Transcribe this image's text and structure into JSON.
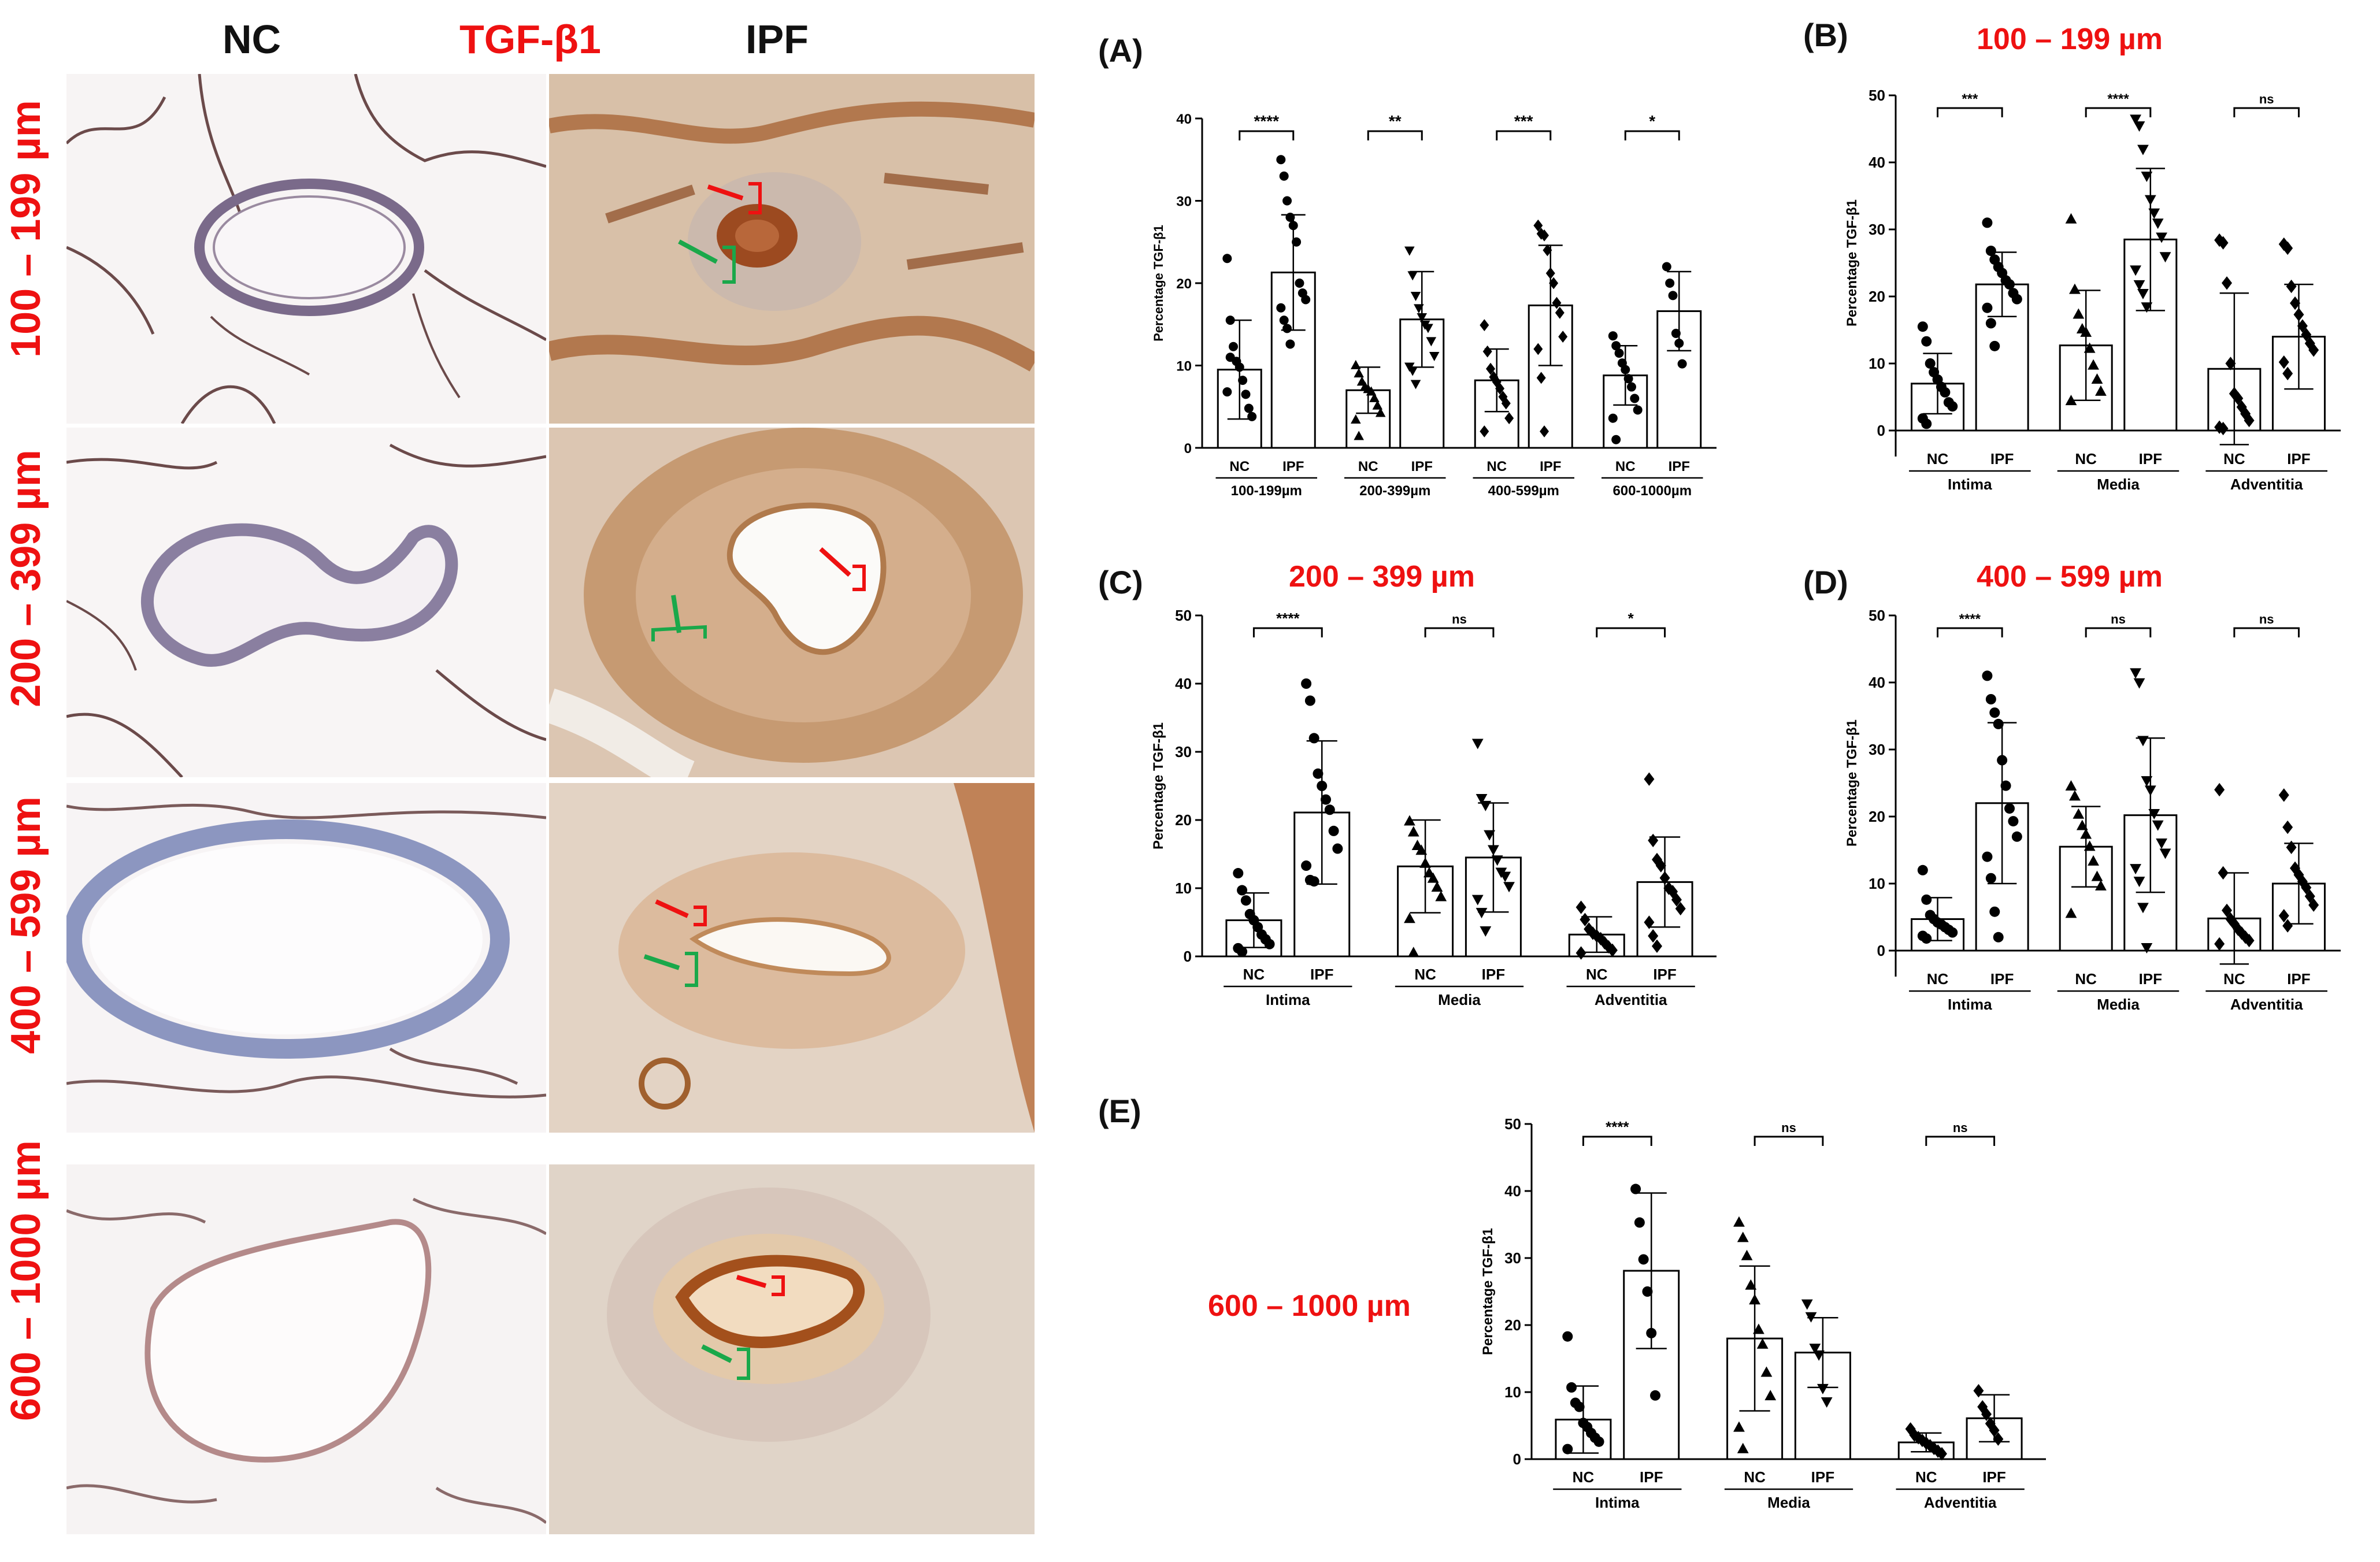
{
  "figure": {
    "headers": {
      "nc": "NC",
      "stain": "TGF-β1",
      "ipf": "IPF"
    },
    "row_labels": [
      "100 – 199 µm",
      "200 – 399 µm",
      "400 – 599 µm",
      "600 – 1000 µm"
    ],
    "panels": {
      "A": {
        "letter": "(A)",
        "size": ""
      },
      "B": {
        "letter": "(B)",
        "size": "100 – 199 µm"
      },
      "C": {
        "letter": "(C)",
        "size": "200 – 399 µm"
      },
      "D": {
        "letter": "(D)",
        "size": "400 – 599 µm"
      },
      "E": {
        "letter": "(E)",
        "size": "600 – 1000 µm"
      }
    },
    "colors": {
      "label_red": "#ee1111",
      "arrow_red": "#ee1111",
      "arrow_green": "#1aa84a",
      "stain_brown": "#a8622a",
      "tissue_blue": "#aab4cc"
    }
  },
  "chart_data": [
    {
      "id": "A",
      "type": "bar",
      "ylabel": "Percentage TGF-β1",
      "ylim": [
        0,
        40
      ],
      "yticks": [
        0,
        10,
        20,
        30,
        40
      ],
      "groups": [
        "100-199µm",
        "200-399µm",
        "400-599µm",
        "600-1000µm"
      ],
      "categories": [
        "NC",
        "IPF",
        "NC",
        "IPF",
        "NC",
        "IPF",
        "NC",
        "IPF"
      ],
      "values": [
        9.5,
        21.3,
        7.0,
        15.6,
        8.2,
        17.3,
        8.8,
        16.6
      ],
      "sd": [
        6.0,
        7.0,
        2.8,
        5.8,
        3.8,
        7.3,
        3.6,
        4.8
      ],
      "points": [
        [
          23,
          15.5,
          12.3,
          10.5,
          9.8,
          8.2,
          6.5,
          4.8,
          3.8,
          6.8,
          11
        ],
        [
          35,
          33,
          30,
          28,
          27,
          25,
          20,
          18.8,
          18,
          17,
          15.5,
          14.5,
          12.6
        ],
        [
          10,
          9,
          8,
          7.4,
          7.1,
          6.8,
          6,
          5.1,
          4.2,
          3.4,
          1.4
        ],
        [
          24,
          21,
          18.5,
          17,
          15.9,
          15,
          14.6,
          13,
          11.2,
          9.9,
          9.4,
          7.8
        ],
        [
          14.9,
          11.7,
          9.6,
          8.6,
          8,
          7.2,
          6.2,
          5.4,
          3.6,
          2
        ],
        [
          27,
          26,
          25.8,
          24,
          21.2,
          20,
          17.6,
          16.4,
          13.5,
          12,
          8.5,
          2
        ],
        [
          13.6,
          12.4,
          11.5,
          10.3,
          9.5,
          8.4,
          7.4,
          6,
          4.6,
          3.6,
          1
        ],
        [
          22,
          20,
          18.5,
          13.9,
          12.7,
          10.2
        ]
      ],
      "markers": [
        "circle",
        "circle",
        "triangle",
        "triangle-down",
        "diamond",
        "diamond",
        "circle",
        "circle"
      ],
      "significance": [
        "****",
        "**",
        "***",
        "*"
      ]
    },
    {
      "id": "B",
      "type": "bar",
      "ylabel": "Percentage TGF-β1",
      "ylim": [
        0,
        50
      ],
      "yticks": [
        0,
        10,
        20,
        30,
        40,
        50
      ],
      "groups": [
        "Intima",
        "Media",
        "Adventitia"
      ],
      "categories": [
        "NC",
        "IPF",
        "NC",
        "IPF",
        "NC",
        "IPF"
      ],
      "values": [
        7.0,
        21.8,
        12.7,
        28.5,
        9.2,
        14.0
      ],
      "sd": [
        4.5,
        4.8,
        8.2,
        10.6,
        11.3,
        7.8
      ],
      "points": [
        [
          15.5,
          13.3,
          10,
          8.7,
          7.6,
          6.5,
          5.7,
          4.2,
          3.6,
          1.8,
          1
        ],
        [
          31,
          26.8,
          25.5,
          24.4,
          23.5,
          22.4,
          21.8,
          20.5,
          19.6,
          18.3,
          16,
          12.6
        ],
        [
          31.5,
          21,
          17.3,
          15.1,
          14.6,
          12.2,
          9.7,
          7.6,
          5.8,
          4.4
        ],
        [
          46.5,
          45.5,
          42,
          38,
          34.5,
          32.5,
          31,
          28.9,
          26,
          24,
          21.8,
          20.5,
          18.5
        ],
        [
          28.4,
          28,
          22,
          10,
          5.5,
          4.8,
          3.5,
          2.5,
          1.5,
          0.5,
          0.3
        ],
        [
          27.8,
          27.2,
          21.5,
          19,
          17.3,
          15.6,
          14.3,
          13,
          12,
          10.2,
          8.5
        ]
      ],
      "markers": [
        "circle",
        "circle",
        "triangle",
        "triangle-down",
        "diamond",
        "diamond"
      ],
      "significance": [
        "***",
        "****",
        "ns"
      ]
    },
    {
      "id": "C",
      "type": "bar",
      "ylabel": "Percentage TGF-β1",
      "ylim": [
        0,
        50
      ],
      "yticks": [
        0,
        10,
        20,
        30,
        40,
        50
      ],
      "groups": [
        "Intima",
        "Media",
        "Adventitia"
      ],
      "categories": [
        "NC",
        "IPF",
        "NC",
        "IPF",
        "NC",
        "IPF"
      ],
      "values": [
        5.3,
        21.1,
        13.2,
        14.5,
        3.2,
        10.9
      ],
      "sd": [
        4.0,
        10.5,
        6.8,
        8.0,
        2.6,
        6.6
      ],
      "points": [
        [
          12.2,
          9.7,
          8.2,
          6.2,
          5.3,
          4.3,
          3.2,
          2.5,
          1.8,
          1.2,
          0.7
        ],
        [
          40,
          37.5,
          32,
          26.8,
          25,
          23,
          21.5,
          18.4,
          15.8,
          13.3,
          11.2,
          11
        ],
        [
          19.8,
          18.2,
          16.2,
          15.5,
          13.6,
          12.2,
          11.4,
          10.1,
          8.7,
          5.5,
          0.5
        ],
        [
          31.3,
          23.2,
          22.2,
          17.9,
          15.7,
          14.2,
          12.4,
          11.8,
          10.3,
          8.4,
          6.5,
          3.8
        ],
        [
          7.2,
          5.4,
          4,
          3.4,
          3,
          2.6,
          2,
          1.4,
          0.9,
          0.5
        ],
        [
          26,
          17,
          14.2,
          13.3,
          11.5,
          10,
          9.5,
          8.3,
          7,
          5,
          3,
          1.5
        ]
      ],
      "markers": [
        "circle",
        "circle",
        "triangle",
        "triangle-down",
        "diamond",
        "diamond"
      ],
      "significance": [
        "****",
        "ns",
        "*"
      ]
    },
    {
      "id": "D",
      "type": "bar",
      "ylabel": "Percentage TGF-β1",
      "ylim": [
        0,
        50
      ],
      "yticks": [
        0,
        10,
        20,
        30,
        40,
        50
      ],
      "groups": [
        "Intima",
        "Media",
        "Adventitia"
      ],
      "categories": [
        "NC",
        "IPF",
        "NC",
        "IPF",
        "NC",
        "IPF"
      ],
      "values": [
        4.7,
        22.0,
        15.5,
        20.2,
        4.8,
        10.0
      ],
      "sd": [
        3.2,
        12.0,
        6.0,
        11.5,
        6.8,
        6.0
      ],
      "points": [
        [
          12,
          7.6,
          5.3,
          4.7,
          4.2,
          3.9,
          3.5,
          3.1,
          2.7,
          2.2,
          1.8
        ],
        [
          41,
          37.5,
          35.5,
          33.8,
          28.4,
          24.6,
          21.2,
          19.3,
          17,
          14,
          10.8,
          5.8,
          2
        ],
        [
          24.5,
          23,
          20.3,
          18.6,
          17.3,
          15.5,
          13.3,
          11,
          9.6,
          5.5
        ],
        [
          41.5,
          40,
          31.4,
          25.4,
          24,
          20.5,
          18.8,
          16.1,
          14.6,
          12.3,
          10.4,
          6.5,
          0.5
        ],
        [
          24,
          11.6,
          6,
          4.7,
          4,
          3.2,
          2.6,
          2,
          1.5,
          1
        ],
        [
          23.2,
          18.4,
          15.4,
          12.3,
          11.3,
          10.3,
          9.4,
          8.1,
          6.8,
          5.2,
          3.7
        ]
      ],
      "markers": [
        "circle",
        "circle",
        "triangle",
        "triangle-down",
        "diamond",
        "diamond"
      ],
      "significance": [
        "****",
        "ns",
        "ns"
      ]
    },
    {
      "id": "E",
      "type": "bar",
      "ylabel": "Percentage TGF-β1",
      "ylim": [
        0,
        50
      ],
      "yticks": [
        0,
        10,
        20,
        30,
        40,
        50
      ],
      "groups": [
        "Intima",
        "Media",
        "Adventitia"
      ],
      "categories": [
        "NC",
        "IPF",
        "NC",
        "IPF",
        "NC",
        "IPF"
      ],
      "values": [
        5.9,
        28.1,
        18.0,
        15.9,
        2.5,
        6.1
      ],
      "sd": [
        5.0,
        11.6,
        10.8,
        5.2,
        1.4,
        3.5
      ],
      "points": [
        [
          18.3,
          10.7,
          8.4,
          7.8,
          5.4,
          4.8,
          3.9,
          3.2,
          2.6,
          1.5
        ],
        [
          40.3,
          35.3,
          29.8,
          25,
          18.8,
          9.5
        ],
        [
          35.3,
          33,
          30.3,
          25.9,
          23.7,
          19.3,
          17.1,
          12.9,
          9.4,
          4.7,
          1.5
        ],
        [
          23.2,
          21.3,
          16.6,
          15.6,
          10.6,
          8.6
        ],
        [
          4.5,
          3.6,
          3.2,
          2.8,
          2.4,
          2,
          1.6,
          1.2,
          0.8
        ],
        [
          10.2,
          7.8,
          6.7,
          5.3,
          4.3,
          3
        ]
      ],
      "markers": [
        "circle",
        "circle",
        "triangle",
        "triangle-down",
        "diamond",
        "diamond"
      ],
      "significance": [
        "****",
        "ns",
        "ns"
      ]
    }
  ]
}
